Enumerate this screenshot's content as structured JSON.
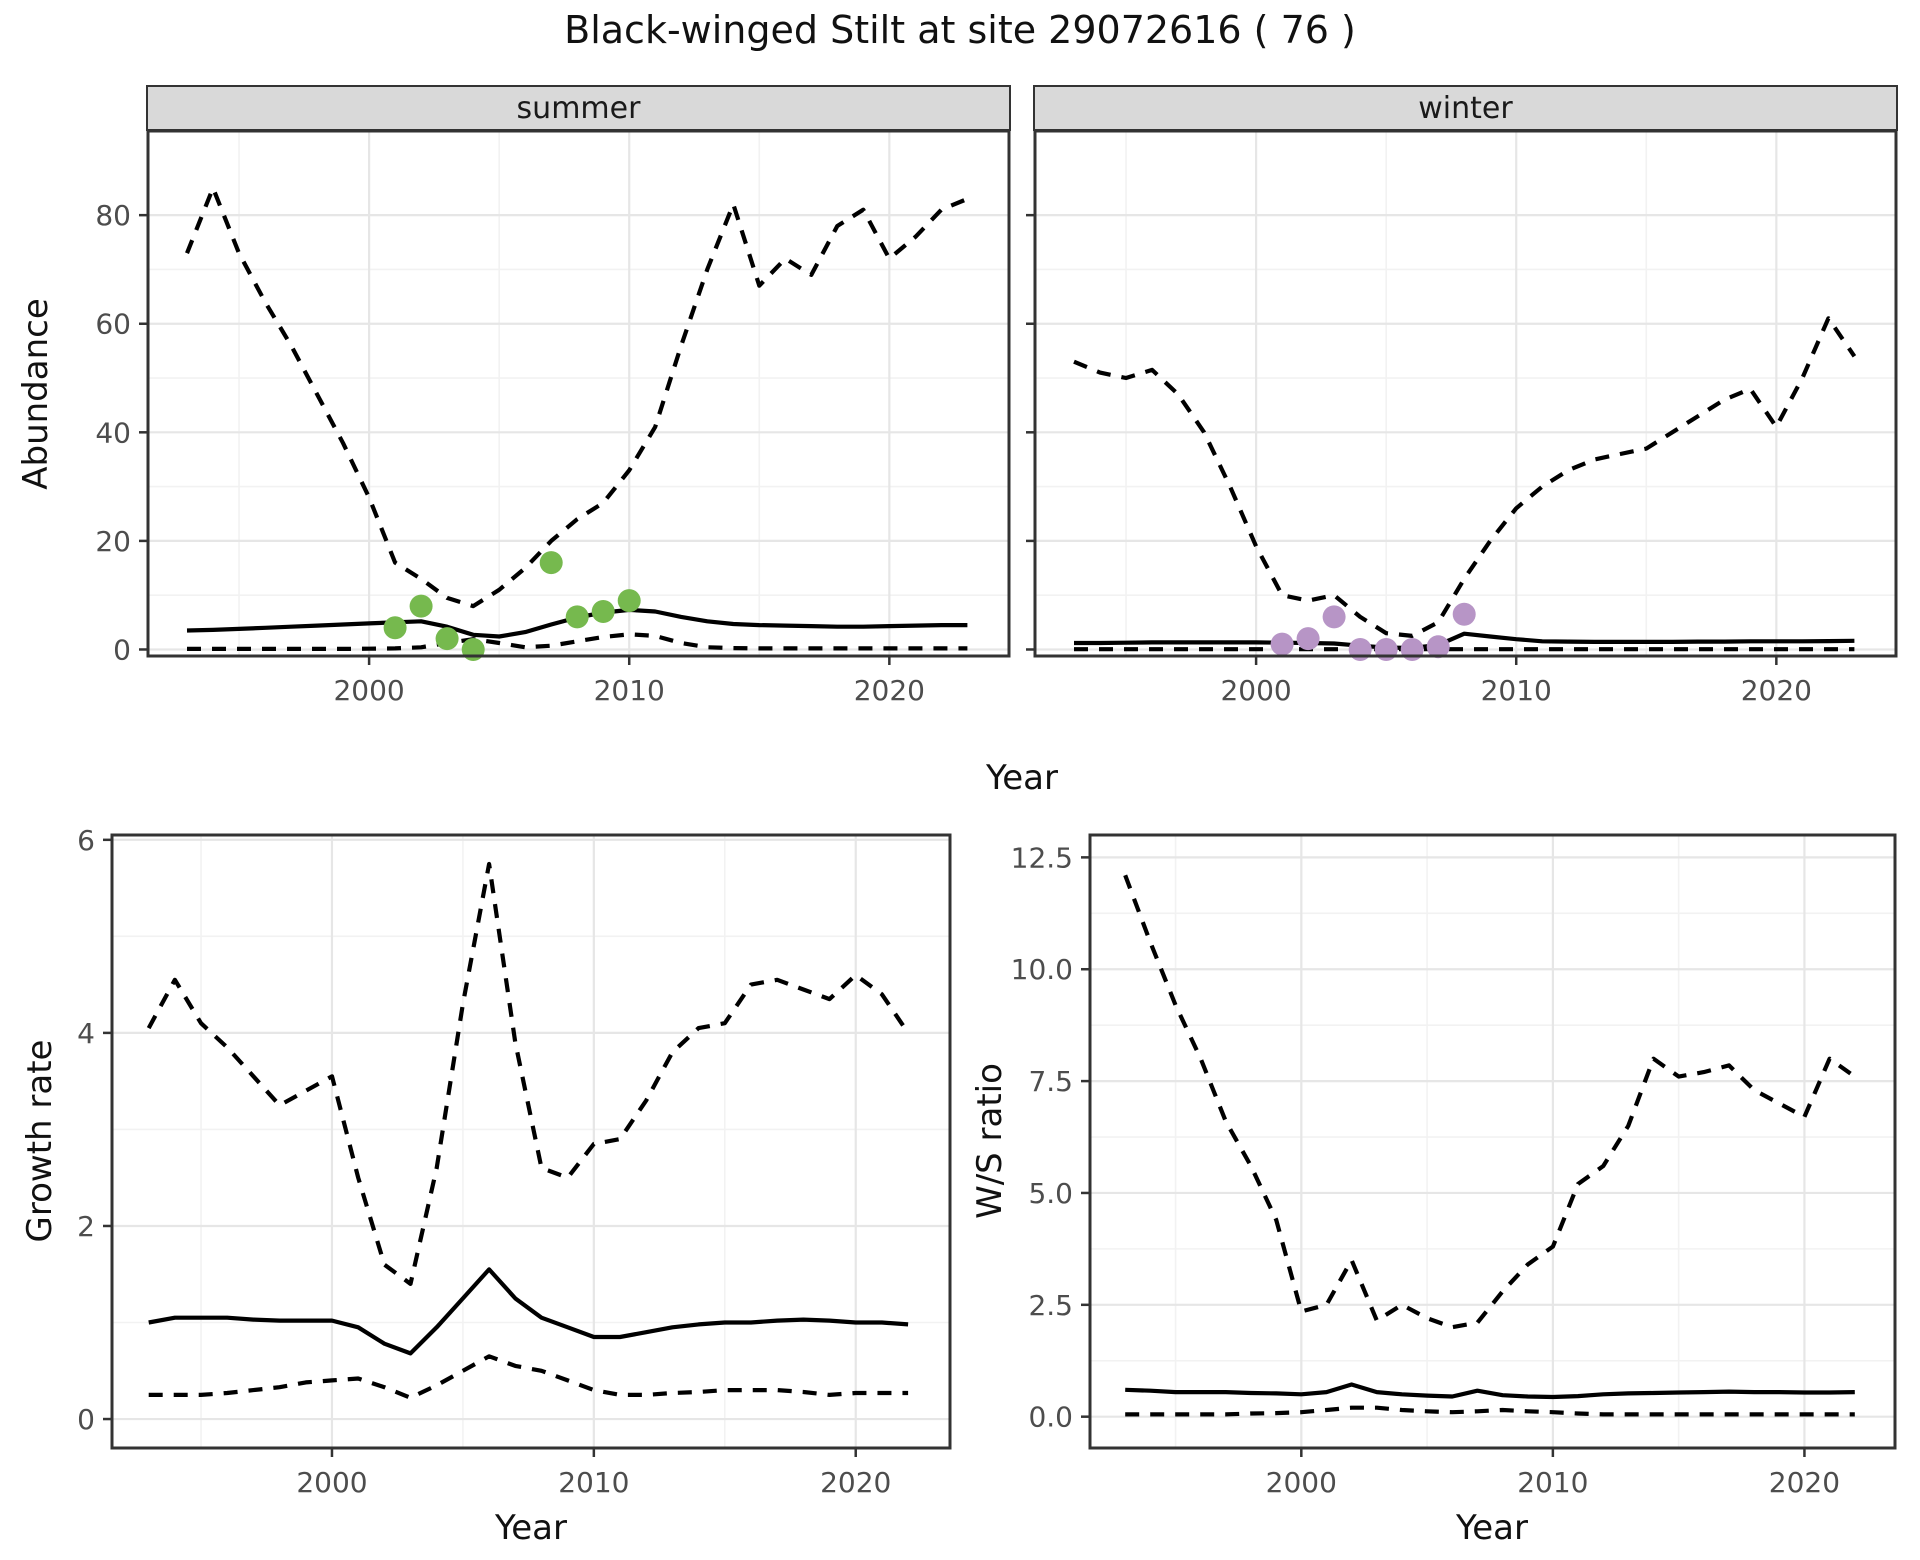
{
  "title": "Black-winged Stilt at site 29072616 ( 76 )",
  "facets": {
    "summer": "summer",
    "winter": "winter"
  },
  "axis_titles": {
    "abundance": "Abundance",
    "growth_rate": "Growth rate",
    "ws_ratio": "W/S ratio",
    "year": "Year"
  },
  "colors": {
    "summer_points": "#76b94e",
    "winter_points": "#b795c6",
    "line": "#000000",
    "grid_major": "#e6e6e6",
    "grid_minor": "#f2f2f2",
    "strip_fill": "#d9d9d9",
    "panel_border": "#333333",
    "tick_text": "#4d4d4d"
  },
  "chart_data": [
    {
      "id": "abundance-summer",
      "type": "line",
      "facet": "summer",
      "title": "Black-winged Stilt at site 29072616 ( 76 )",
      "xlabel": "Year",
      "ylabel": "Abundance",
      "xlim": [
        1991.5,
        2024.6
      ],
      "ylim": [
        -1.2,
        95.5
      ],
      "xticks": [
        2000,
        2010,
        2020
      ],
      "xtick_labels": [
        "2000",
        "2010",
        "2020"
      ],
      "xminor": [
        1995,
        2005,
        2015
      ],
      "yticks": [
        0,
        20,
        40,
        60,
        80
      ],
      "ytick_labels": [
        "0",
        "20",
        "40",
        "60",
        "80"
      ],
      "yminor": [
        10,
        30,
        50,
        70
      ],
      "grid": true,
      "legend": "none",
      "x": [
        1993,
        1994,
        1995,
        1996,
        1997,
        1998,
        1999,
        2000,
        2001,
        2002,
        2003,
        2004,
        2005,
        2006,
        2007,
        2008,
        2009,
        2010,
        2011,
        2012,
        2013,
        2014,
        2015,
        2016,
        2017,
        2018,
        2019,
        2020,
        2021,
        2022,
        2023
      ],
      "series": [
        {
          "name": "upper-credible-dashed",
          "style": "dashed",
          "values": [
            73,
            85,
            73,
            64,
            56,
            47,
            38,
            28,
            16,
            13,
            9.5,
            8,
            11,
            15,
            20,
            24,
            27,
            33,
            41,
            56,
            70,
            82,
            67,
            72,
            69,
            78,
            81,
            72,
            76,
            81,
            83
          ]
        },
        {
          "name": "median-solid",
          "style": "solid",
          "values": [
            3.5,
            3.6,
            3.8,
            4.0,
            4.2,
            4.4,
            4.6,
            4.8,
            5.0,
            5.2,
            4.2,
            2.7,
            2.4,
            3.2,
            4.6,
            5.9,
            6.8,
            7.3,
            7.0,
            6.0,
            5.2,
            4.7,
            4.5,
            4.4,
            4.3,
            4.2,
            4.2,
            4.3,
            4.4,
            4.5,
            4.5
          ]
        },
        {
          "name": "lower-credible-dashed",
          "style": "dashed",
          "values": [
            0.1,
            0.1,
            0.1,
            0.1,
            0.1,
            0.1,
            0.1,
            0.15,
            0.2,
            0.4,
            1.2,
            1.9,
            1.2,
            0.4,
            0.7,
            1.5,
            2.3,
            2.8,
            2.5,
            1.2,
            0.4,
            0.25,
            0.2,
            0.2,
            0.2,
            0.2,
            0.2,
            0.2,
            0.2,
            0.2,
            0.2
          ]
        }
      ],
      "points": {
        "name": "summer-observations",
        "color_key": "summer_points",
        "data": [
          {
            "year": 2001,
            "value": 4
          },
          {
            "year": 2002,
            "value": 8
          },
          {
            "year": 2003,
            "value": 2
          },
          {
            "year": 2004,
            "value": 0
          },
          {
            "year": 2007,
            "value": 16
          },
          {
            "year": 2008,
            "value": 6
          },
          {
            "year": 2009,
            "value": 7
          },
          {
            "year": 2010,
            "value": 9
          }
        ]
      }
    },
    {
      "id": "abundance-winter",
      "type": "line",
      "facet": "winter",
      "xlabel": "Year",
      "ylabel": "",
      "xlim": [
        1991.5,
        2024.6
      ],
      "ylim": [
        -1.2,
        95.5
      ],
      "xticks": [
        2000,
        2010,
        2020
      ],
      "xtick_labels": [
        "2000",
        "2010",
        "2020"
      ],
      "xminor": [
        1995,
        2005,
        2015
      ],
      "yticks": [
        0,
        20,
        40,
        60,
        80
      ],
      "ytick_labels": [
        "0",
        "20",
        "40",
        "60",
        "80"
      ],
      "yminor": [
        10,
        30,
        50,
        70
      ],
      "grid": true,
      "legend": "none",
      "x": [
        1993,
        1994,
        1995,
        1996,
        1997,
        1998,
        1999,
        2000,
        2001,
        2002,
        2003,
        2004,
        2005,
        2006,
        2007,
        2008,
        2009,
        2010,
        2011,
        2012,
        2013,
        2014,
        2015,
        2016,
        2017,
        2018,
        2019,
        2020,
        2021,
        2022,
        2023
      ],
      "series": [
        {
          "name": "upper-credible-dashed",
          "style": "dashed",
          "values": [
            53,
            51,
            50,
            51.5,
            47,
            40,
            30,
            19,
            10,
            9,
            10,
            6,
            3,
            2.5,
            5,
            13,
            20,
            26,
            30,
            33,
            35,
            36,
            37,
            40,
            43,
            46,
            48,
            41,
            50,
            61,
            54
          ]
        },
        {
          "name": "median-solid",
          "style": "solid",
          "values": [
            1.2,
            1.2,
            1.25,
            1.3,
            1.3,
            1.3,
            1.3,
            1.3,
            1.25,
            1.2,
            1.1,
            0.7,
            0.35,
            0.3,
            0.8,
            2.9,
            2.4,
            1.9,
            1.5,
            1.45,
            1.4,
            1.4,
            1.4,
            1.4,
            1.45,
            1.45,
            1.5,
            1.5,
            1.5,
            1.55,
            1.6
          ]
        },
        {
          "name": "lower-credible-dashed",
          "style": "dashed",
          "values": [
            0.05,
            0.05,
            0.05,
            0.05,
            0.05,
            0.05,
            0.05,
            0.05,
            0.05,
            0.05,
            0.05,
            0.05,
            0.05,
            0.05,
            0.05,
            0.05,
            0.05,
            0.05,
            0.05,
            0.05,
            0.05,
            0.05,
            0.05,
            0.05,
            0.05,
            0.05,
            0.05,
            0.05,
            0.05,
            0.05,
            0.05
          ]
        }
      ],
      "points": {
        "name": "winter-observations",
        "color_key": "winter_points",
        "data": [
          {
            "year": 2001,
            "value": 1
          },
          {
            "year": 2002,
            "value": 2
          },
          {
            "year": 2003,
            "value": 6
          },
          {
            "year": 2004,
            "value": 0
          },
          {
            "year": 2005,
            "value": 0
          },
          {
            "year": 2006,
            "value": 0
          },
          {
            "year": 2007,
            "value": 0.5
          },
          {
            "year": 2008,
            "value": 6.5
          }
        ]
      }
    },
    {
      "id": "growth-rate",
      "type": "line",
      "facet": "",
      "xlabel": "Year",
      "ylabel": "Growth rate",
      "xlim": [
        1991.6,
        2023.6
      ],
      "ylim": [
        -0.3,
        6.05
      ],
      "xticks": [
        2000,
        2010,
        2020
      ],
      "xtick_labels": [
        "2000",
        "2010",
        "2020"
      ],
      "xminor": [
        1995,
        2005,
        2015
      ],
      "yticks": [
        0,
        2,
        4,
        6
      ],
      "ytick_labels": [
        "0",
        "2",
        "4",
        "6"
      ],
      "yminor": [
        1,
        3,
        5
      ],
      "grid": true,
      "legend": "none",
      "x": [
        1993,
        1994,
        1995,
        1996,
        1997,
        1998,
        1999,
        2000,
        2001,
        2002,
        2003,
        2004,
        2005,
        2006,
        2007,
        2008,
        2009,
        2010,
        2011,
        2012,
        2013,
        2014,
        2015,
        2016,
        2017,
        2018,
        2019,
        2020,
        2021,
        2022
      ],
      "series": [
        {
          "name": "upper-credible-dashed",
          "style": "dashed",
          "values": [
            4.05,
            4.55,
            4.1,
            3.85,
            3.55,
            3.25,
            3.4,
            3.55,
            2.5,
            1.6,
            1.4,
            2.6,
            4.3,
            5.75,
            3.9,
            2.6,
            2.5,
            2.85,
            2.9,
            3.3,
            3.8,
            4.05,
            4.1,
            4.5,
            4.55,
            4.45,
            4.35,
            4.6,
            4.4,
            4.0
          ]
        },
        {
          "name": "median-solid",
          "style": "solid",
          "values": [
            1.0,
            1.05,
            1.05,
            1.05,
            1.03,
            1.02,
            1.02,
            1.02,
            0.95,
            0.78,
            0.68,
            0.95,
            1.25,
            1.55,
            1.25,
            1.05,
            0.95,
            0.85,
            0.85,
            0.9,
            0.95,
            0.98,
            1.0,
            1.0,
            1.02,
            1.03,
            1.02,
            1.0,
            1.0,
            0.98
          ]
        },
        {
          "name": "lower-credible-dashed",
          "style": "dashed",
          "values": [
            0.25,
            0.25,
            0.25,
            0.27,
            0.3,
            0.33,
            0.38,
            0.4,
            0.42,
            0.33,
            0.22,
            0.35,
            0.5,
            0.65,
            0.55,
            0.5,
            0.4,
            0.3,
            0.25,
            0.25,
            0.27,
            0.28,
            0.3,
            0.3,
            0.3,
            0.28,
            0.25,
            0.27,
            0.27,
            0.27
          ]
        }
      ],
      "points": null
    },
    {
      "id": "ws-ratio",
      "type": "line",
      "facet": "",
      "xlabel": "Year",
      "ylabel": "W/S ratio",
      "xlim": [
        1991.6,
        2023.6
      ],
      "ylim": [
        -0.7,
        13.0
      ],
      "xticks": [
        2000,
        2010,
        2020
      ],
      "xtick_labels": [
        "2000",
        "2010",
        "2020"
      ],
      "xminor": [
        1995,
        2005,
        2015
      ],
      "yticks": [
        0,
        2.5,
        5,
        7.5,
        10,
        12.5
      ],
      "ytick_labels": [
        "0.0",
        "2.5",
        "5.0",
        "7.5",
        "10.0",
        "12.5"
      ],
      "yminor": [
        1.25,
        3.75,
        6.25,
        8.75,
        11.25
      ],
      "grid": true,
      "legend": "none",
      "x": [
        1993,
        1994,
        1995,
        1996,
        1997,
        1998,
        1999,
        2000,
        2001,
        2002,
        2003,
        2004,
        2005,
        2006,
        2007,
        2008,
        2009,
        2010,
        2011,
        2012,
        2013,
        2014,
        2015,
        2016,
        2017,
        2018,
        2019,
        2020,
        2021,
        2022
      ],
      "series": [
        {
          "name": "upper-credible-dashed",
          "style": "dashed",
          "values": [
            12.1,
            10.6,
            9.2,
            8.0,
            6.6,
            5.6,
            4.4,
            2.35,
            2.5,
            3.5,
            2.15,
            2.5,
            2.2,
            2.0,
            2.1,
            2.8,
            3.4,
            3.8,
            5.2,
            5.6,
            6.5,
            8.0,
            7.6,
            7.7,
            7.85,
            7.3,
            7.0,
            6.7,
            8.0,
            7.6
          ]
        },
        {
          "name": "median-solid",
          "style": "solid",
          "values": [
            0.6,
            0.58,
            0.55,
            0.55,
            0.55,
            0.53,
            0.52,
            0.5,
            0.55,
            0.72,
            0.55,
            0.5,
            0.47,
            0.45,
            0.58,
            0.48,
            0.45,
            0.44,
            0.46,
            0.5,
            0.52,
            0.53,
            0.54,
            0.55,
            0.56,
            0.55,
            0.55,
            0.54,
            0.54,
            0.55
          ]
        },
        {
          "name": "lower-credible-dashed",
          "style": "dashed",
          "values": [
            0.05,
            0.05,
            0.05,
            0.05,
            0.05,
            0.07,
            0.08,
            0.1,
            0.15,
            0.2,
            0.2,
            0.15,
            0.12,
            0.1,
            0.12,
            0.15,
            0.12,
            0.1,
            0.07,
            0.05,
            0.05,
            0.05,
            0.05,
            0.05,
            0.05,
            0.05,
            0.05,
            0.05,
            0.05,
            0.05
          ]
        }
      ],
      "points": null
    }
  ]
}
